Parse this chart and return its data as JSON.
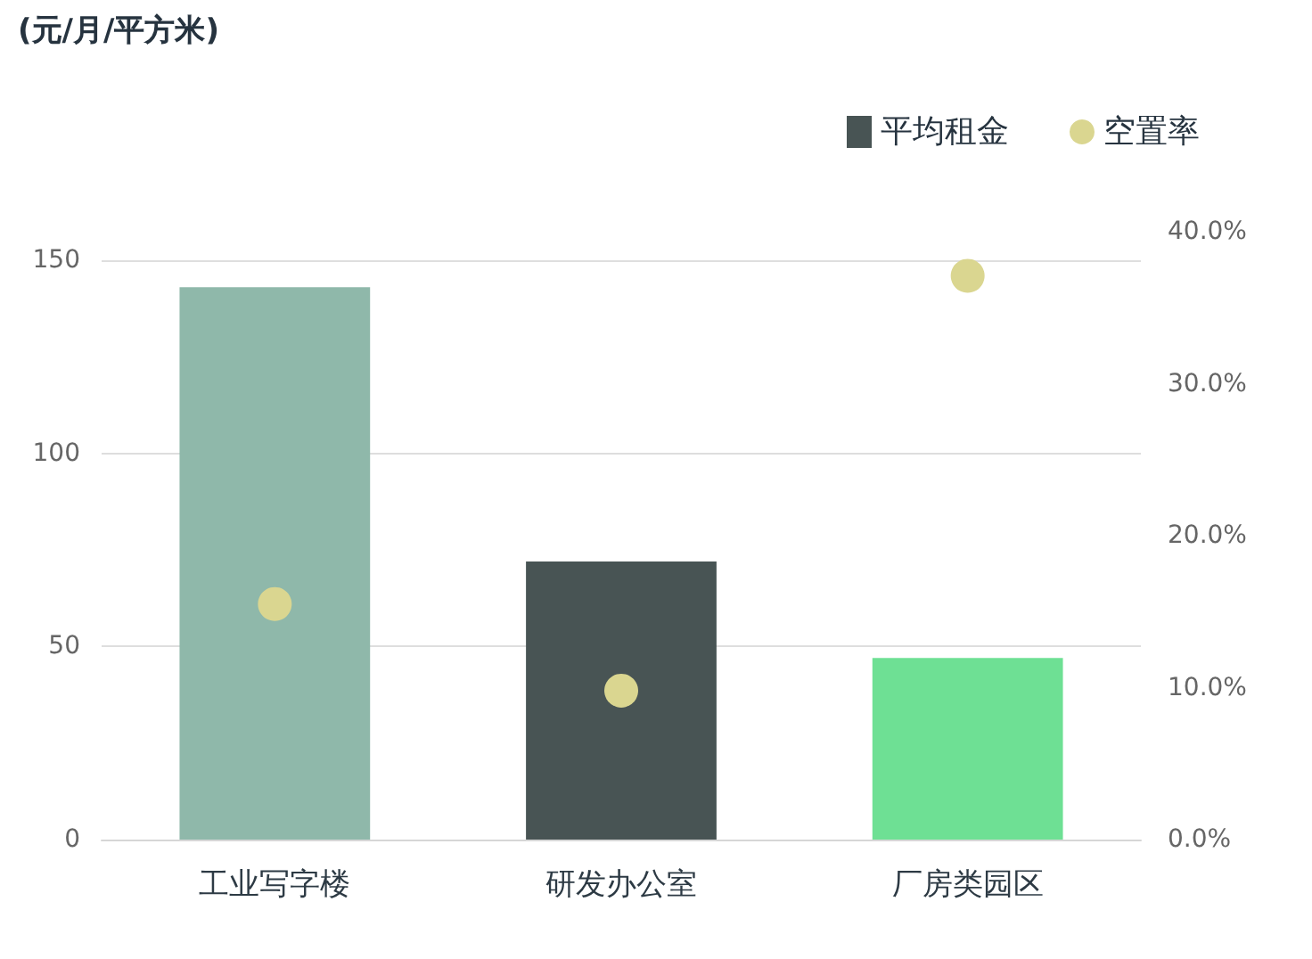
{
  "chart_data": {
    "type": "bar",
    "annotations": [
      "(元/月/平方米)"
    ],
    "categories": [
      "工业写字楼",
      "研发办公室",
      "厂房类园区"
    ],
    "series": [
      {
        "name": "平均租金",
        "color": "#485454",
        "colors": [
          "#8fb8aa",
          "#485454",
          "#6ee094"
        ],
        "values": [
          143,
          72,
          47
        ]
      },
      {
        "name": "空置率",
        "type": "scatter",
        "axis": "y2",
        "color": "#dad690",
        "values": [
          15.5,
          9.8,
          37.1
        ]
      }
    ],
    "ylim": [
      0,
      150
    ],
    "yticks": [
      0,
      50,
      100,
      150
    ],
    "y2lim": [
      0,
      40
    ],
    "y2ticks": [
      {
        "value": 0,
        "label": "0.0%"
      },
      {
        "value": 10,
        "label": "10.0%"
      },
      {
        "value": 20,
        "label": "20.0%"
      },
      {
        "value": 30,
        "label": "30.0%"
      },
      {
        "value": 40,
        "label": "40.0%"
      }
    ],
    "grid": "y",
    "legend": "top right",
    "marker": "circle"
  }
}
